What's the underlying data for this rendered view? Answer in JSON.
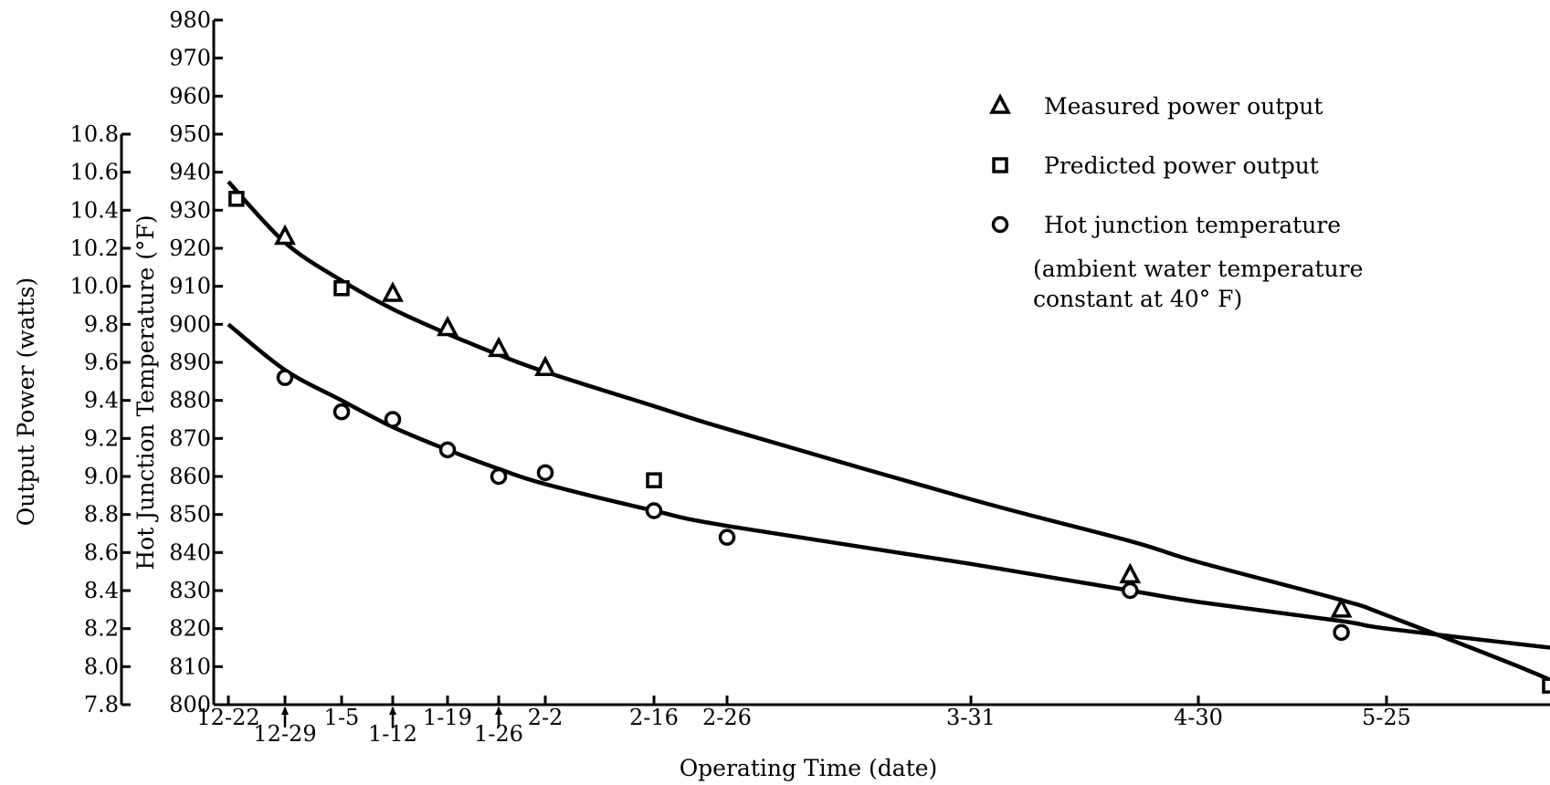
{
  "chart_data": {
    "type": "line",
    "xlabel": "Operating Time (date)",
    "ylabel_left": "Output Power (watts)",
    "ylabel_right": "Hot Junction Temperature (°F)",
    "x_ticks": [
      {
        "label": "12-22",
        "row": 1
      },
      {
        "label": "12-29",
        "row": 2,
        "arrow": true
      },
      {
        "label": "1-5",
        "row": 1
      },
      {
        "label": "1-12",
        "row": 2,
        "arrow": true
      },
      {
        "label": "1-19",
        "row": 1
      },
      {
        "label": "1-26",
        "row": 2,
        "arrow": true
      },
      {
        "label": "2-2",
        "row": 1
      },
      {
        "label": "2-16",
        "row": 1
      },
      {
        "label": "2-26",
        "row": 1
      },
      {
        "label": "3-31",
        "row": 1
      },
      {
        "label": "4-30",
        "row": 1
      },
      {
        "label": "5-25",
        "row": 1
      }
    ],
    "power_axis": {
      "ylim": [
        7.8,
        10.8
      ],
      "ticks": [
        "7.8",
        "8.0",
        "8.2",
        "8.4",
        "8.6",
        "8.8",
        "9.0",
        "9.2",
        "9.4",
        "9.6",
        "9.8",
        "10.0",
        "10.2",
        "10.4",
        "10.6",
        "10.8"
      ]
    },
    "temperature_axis": {
      "ylim": [
        800,
        980
      ],
      "ticks": [
        "800",
        "810",
        "820",
        "830",
        "840",
        "850",
        "860",
        "870",
        "880",
        "890",
        "900",
        "910",
        "920",
        "930",
        "940",
        "950",
        "960",
        "970",
        "980"
      ]
    },
    "series": [
      {
        "name": "Measured power output",
        "marker": "triangle",
        "axis": "power",
        "points": [
          {
            "x": "12-29",
            "y": 10.26
          },
          {
            "x": "1-12",
            "y": 9.96
          },
          {
            "x": "1-19",
            "y": 9.78
          },
          {
            "x": "1-26",
            "y": 9.67
          },
          {
            "x": "2-2",
            "y": 9.57
          },
          {
            "x": "4-21",
            "y": 8.48
          },
          {
            "x": "5-19",
            "y": 8.3
          }
        ]
      },
      {
        "name": "Predicted power output",
        "marker": "square",
        "axis": "power",
        "points": [
          {
            "x": "12-23",
            "y": 10.46
          },
          {
            "x": "1-5",
            "y": 9.99
          },
          {
            "x": "2-16",
            "y": 8.98
          },
          {
            "x": "6-15",
            "y": 7.9
          }
        ]
      },
      {
        "name": "Hot junction temperature",
        "marker": "circle",
        "axis": "temperature",
        "points": [
          {
            "x": "12-29",
            "y": 886
          },
          {
            "x": "1-5",
            "y": 877
          },
          {
            "x": "1-12",
            "y": 875
          },
          {
            "x": "1-19",
            "y": 867
          },
          {
            "x": "1-26",
            "y": 860
          },
          {
            "x": "2-2",
            "y": 861
          },
          {
            "x": "2-16",
            "y": 851
          },
          {
            "x": "2-26",
            "y": 844
          },
          {
            "x": "4-21",
            "y": 830
          },
          {
            "x": "5-19",
            "y": 819
          }
        ]
      }
    ],
    "fit_curves": [
      {
        "fits": "Measured power output",
        "axis": "power",
        "points": [
          {
            "x": "12-22",
            "y": 10.55
          },
          {
            "x": "12-29",
            "y": 10.23
          },
          {
            "x": "1-5",
            "y": 10.03
          },
          {
            "x": "1-12",
            "y": 9.88
          },
          {
            "x": "1-19",
            "y": 9.75
          },
          {
            "x": "1-26",
            "y": 9.64
          },
          {
            "x": "2-2",
            "y": 9.55
          },
          {
            "x": "2-16",
            "y": 9.37
          },
          {
            "x": "2-26",
            "y": 9.25
          },
          {
            "x": "3-31",
            "y": 8.88
          },
          {
            "x": "4-21",
            "y": 8.66
          },
          {
            "x": "4-30",
            "y": 8.55
          },
          {
            "x": "5-19",
            "y": 8.35
          },
          {
            "x": "5-25",
            "y": 8.27
          },
          {
            "x": "6-15",
            "y": 7.93
          },
          {
            "x": "6-17",
            "y": 7.86
          }
        ]
      },
      {
        "fits": "Hot junction temperature",
        "axis": "temperature",
        "points": [
          {
            "x": "12-22",
            "y": 900
          },
          {
            "x": "12-29",
            "y": 888
          },
          {
            "x": "1-5",
            "y": 880
          },
          {
            "x": "1-12",
            "y": 873
          },
          {
            "x": "1-19",
            "y": 867
          },
          {
            "x": "1-26",
            "y": 862
          },
          {
            "x": "2-2",
            "y": 858
          },
          {
            "x": "2-16",
            "y": 851
          },
          {
            "x": "2-26",
            "y": 847
          },
          {
            "x": "3-31",
            "y": 837
          },
          {
            "x": "4-21",
            "y": 830
          },
          {
            "x": "4-30",
            "y": 827
          },
          {
            "x": "5-19",
            "y": 822
          },
          {
            "x": "5-25",
            "y": 820
          },
          {
            "x": "6-15",
            "y": 815
          }
        ]
      }
    ],
    "legend": {
      "items": [
        {
          "label": "Measured power output",
          "marker": "triangle"
        },
        {
          "label": "Predicted power output",
          "marker": "square"
        },
        {
          "label": "Hot junction temperature",
          "marker": "circle"
        }
      ],
      "note": [
        "(ambient water temperature",
        "constant at 40° F)"
      ],
      "placement": "top-right"
    },
    "grid": false
  }
}
